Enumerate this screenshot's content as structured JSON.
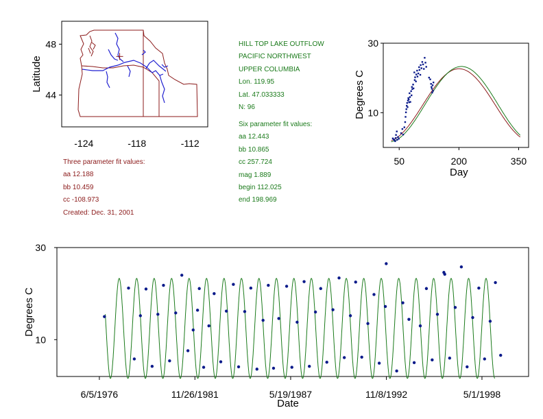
{
  "site": {
    "name": "HILL TOP LAKE OUTFLOW",
    "region": "PACIFIC NORTHWEST",
    "basin": "UPPER COLUMBIA",
    "lon": "Lon. 119.95",
    "lat": "Lat. 47.033333",
    "n": "N: 96"
  },
  "six_param": {
    "title": "Six parameter fit values:",
    "aa": "aa 12.443",
    "bb": "bb 10.865",
    "cc": "cc 257.724",
    "mag": "mag 1.889",
    "begin": "begin 112.025",
    "end": "end 198.969"
  },
  "three_param": {
    "title": "Three parameter fit values:",
    "aa": "aa 12.188",
    "bb": "bb 10.459",
    "cc": "cc -108.973",
    "created": "Created:   Dec. 31, 2001"
  },
  "colors": {
    "map_border": "#8b1a1a",
    "river": "#1f1fd0",
    "fit_line": "#1a7a1a",
    "fit_line_3p": "#8b1a1a",
    "points": "#0a1a8a"
  },
  "chart_data": [
    {
      "id": "map",
      "type": "map",
      "xlabel": "",
      "ylabel": "Latitude",
      "xlim": [
        -126.5,
        -110
      ],
      "ylim": [
        41.5,
        49.8
      ],
      "xticks": [
        -124,
        -118,
        -112
      ],
      "xtick_labels": [
        "-124",
        "-118",
        "-112"
      ],
      "yticks": [
        44,
        48
      ],
      "ytick_labels": [
        "44",
        "48"
      ]
    },
    {
      "id": "seasonal",
      "type": "scatter",
      "xlabel": "Day",
      "ylabel": "Degrees C",
      "xlim": [
        10,
        375
      ],
      "ylim": [
        0,
        30
      ],
      "xticks": [
        50,
        200,
        350
      ],
      "xtick_labels": [
        "50",
        "200",
        "350"
      ],
      "yticks": [
        10,
        30
      ],
      "ytick_labels": [
        "10",
        "30"
      ],
      "fit_amplitude_line": {
        "aa": 12.443,
        "bb": 10.865,
        "cc": 257.724
      },
      "points": [
        [
          34,
          2.6
        ],
        [
          36,
          2.3
        ],
        [
          38,
          2.1
        ],
        [
          40,
          1.8
        ],
        [
          41,
          2.7
        ],
        [
          42,
          3.6
        ],
        [
          44,
          4.6
        ],
        [
          45,
          2.2
        ],
        [
          47,
          3.0
        ],
        [
          49,
          2.5
        ],
        [
          55,
          4.1
        ],
        [
          58,
          5.3
        ],
        [
          60,
          3.7
        ],
        [
          63,
          5.8
        ],
        [
          65,
          7.3
        ],
        [
          66,
          8.8
        ],
        [
          67,
          10.1
        ],
        [
          68,
          11.0
        ],
        [
          69,
          12.0
        ],
        [
          70,
          12.8
        ],
        [
          71,
          11.6
        ],
        [
          72,
          13.5
        ],
        [
          73,
          14.2
        ],
        [
          74,
          13.8
        ],
        [
          75,
          13.0
        ],
        [
          76,
          15.6
        ],
        [
          77,
          14.5
        ],
        [
          78,
          13.1
        ],
        [
          80,
          16.2
        ],
        [
          81,
          15.0
        ],
        [
          82,
          17.4
        ],
        [
          83,
          16.8
        ],
        [
          85,
          18.1
        ],
        [
          86,
          17.0
        ],
        [
          88,
          21.6
        ],
        [
          89,
          19.4
        ],
        [
          90,
          20.2
        ],
        [
          92,
          19.0
        ],
        [
          93,
          21.0
        ],
        [
          95,
          22.1
        ],
        [
          96,
          20.4
        ],
        [
          98,
          21.3
        ],
        [
          100,
          23.1
        ],
        [
          101,
          22.3
        ],
        [
          103,
          20.9
        ],
        [
          104,
          23.7
        ],
        [
          106,
          22.8
        ],
        [
          108,
          24.6
        ],
        [
          110,
          23.9
        ],
        [
          112,
          22.6
        ],
        [
          114,
          25.8
        ],
        [
          116,
          24.4
        ],
        [
          118,
          23.2
        ],
        [
          125,
          20.1
        ],
        [
          128,
          19.6
        ],
        [
          130,
          18.3
        ],
        [
          131,
          17.4
        ],
        [
          132,
          16.9
        ],
        [
          133,
          15.8
        ],
        [
          134,
          17.9
        ],
        [
          135,
          16.3
        ],
        [
          136,
          18.7
        ]
      ]
    },
    {
      "id": "timeseries",
      "type": "scatter",
      "xlabel": "Date",
      "ylabel": "Degrees C",
      "xlim": [
        1974.0,
        2001.0
      ],
      "ylim": [
        2,
        30
      ],
      "xticks": [
        1976.43,
        1981.9,
        1987.38,
        1992.86,
        1998.33
      ],
      "xtick_labels": [
        "6/5/1976",
        "11/26/1981",
        "5/19/1987",
        "11/8/1992",
        "5/1/1998"
      ],
      "yticks": [
        10,
        30
      ],
      "ytick_labels": [
        "10",
        "30"
      ],
      "fit": {
        "aa": 12.443,
        "bb": 10.865,
        "cc": 257.724,
        "start": 1976.77,
        "end": 1999.06
      },
      "points": [
        [
          1976.72,
          15.0
        ],
        [
          1978.1,
          21.2
        ],
        [
          1978.43,
          5.8
        ],
        [
          1978.78,
          15.2
        ],
        [
          1979.1,
          21.0
        ],
        [
          1979.45,
          4.2
        ],
        [
          1979.78,
          15.5
        ],
        [
          1980.1,
          21.8
        ],
        [
          1980.45,
          5.4
        ],
        [
          1980.8,
          15.8
        ],
        [
          1981.15,
          24.0
        ],
        [
          1981.5,
          7.6
        ],
        [
          1981.8,
          12.1
        ],
        [
          1982.05,
          16.4
        ],
        [
          1982.15,
          21.1
        ],
        [
          1982.4,
          4.0
        ],
        [
          1982.7,
          13.0
        ],
        [
          1983.0,
          20.0
        ],
        [
          1983.38,
          5.2
        ],
        [
          1983.7,
          16.2
        ],
        [
          1984.1,
          22.0
        ],
        [
          1984.4,
          4.1
        ],
        [
          1984.75,
          16.1
        ],
        [
          1985.1,
          21.2
        ],
        [
          1985.45,
          3.6
        ],
        [
          1985.8,
          14.2
        ],
        [
          1986.1,
          21.8
        ],
        [
          1986.4,
          3.8
        ],
        [
          1986.7,
          14.6
        ],
        [
          1987.15,
          21.6
        ],
        [
          1987.45,
          4.0
        ],
        [
          1987.75,
          13.8
        ],
        [
          1988.15,
          22.6
        ],
        [
          1988.45,
          4.2
        ],
        [
          1988.8,
          16.0
        ],
        [
          1989.1,
          21.1
        ],
        [
          1989.45,
          5.1
        ],
        [
          1989.8,
          16.5
        ],
        [
          1990.15,
          23.4
        ],
        [
          1990.45,
          6.1
        ],
        [
          1990.8,
          15.2
        ],
        [
          1991.1,
          22.5
        ],
        [
          1991.45,
          6.2
        ],
        [
          1991.8,
          13.5
        ],
        [
          1992.15,
          19.8
        ],
        [
          1992.45,
          4.9
        ],
        [
          1992.8,
          17.2
        ],
        [
          1992.85,
          26.5
        ],
        [
          1993.45,
          3.2
        ],
        [
          1993.8,
          18.0
        ],
        [
          1994.15,
          14.4
        ],
        [
          1994.45,
          5.0
        ],
        [
          1994.8,
          13.0
        ],
        [
          1995.15,
          21.1
        ],
        [
          1995.48,
          5.6
        ],
        [
          1995.78,
          15.5
        ],
        [
          1996.15,
          24.6
        ],
        [
          1996.2,
          24.2
        ],
        [
          1996.48,
          6.0
        ],
        [
          1996.8,
          17.0
        ],
        [
          1997.15,
          25.8
        ],
        [
          1997.48,
          4.1
        ],
        [
          1997.8,
          14.8
        ],
        [
          1998.15,
          21.2
        ],
        [
          1998.48,
          5.8
        ],
        [
          1998.8,
          14.0
        ],
        [
          1999.1,
          22.4
        ],
        [
          1999.4,
          6.6
        ]
      ]
    }
  ]
}
